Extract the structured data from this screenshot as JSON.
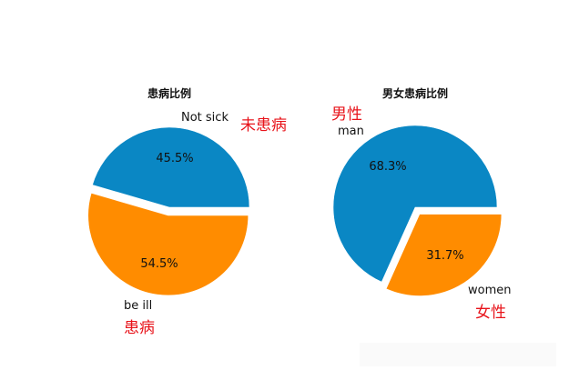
{
  "colors": {
    "series_a": "#0a87c4",
    "series_b": "#ff8c00",
    "annotation": "#e8141b",
    "text": "#111111"
  },
  "chart_data": [
    {
      "type": "pie",
      "title": "患病比例",
      "slices": [
        {
          "label": "Not sick",
          "value": 45.5,
          "pct_label": "45.5%",
          "annotation": "未患病",
          "color": "#0a87c4"
        },
        {
          "label": "be ill",
          "value": 54.5,
          "pct_label": "54.5%",
          "annotation": "患病",
          "color": "#ff8c00",
          "exploded": true
        }
      ]
    },
    {
      "type": "pie",
      "title": "男女患病比例",
      "slices": [
        {
          "label": "man",
          "value": 68.3,
          "pct_label": "68.3%",
          "annotation": "男性",
          "color": "#0a87c4"
        },
        {
          "label": "women",
          "value": 31.7,
          "pct_label": "31.7%",
          "annotation": "女性",
          "color": "#ff8c00",
          "exploded": true
        }
      ]
    }
  ]
}
